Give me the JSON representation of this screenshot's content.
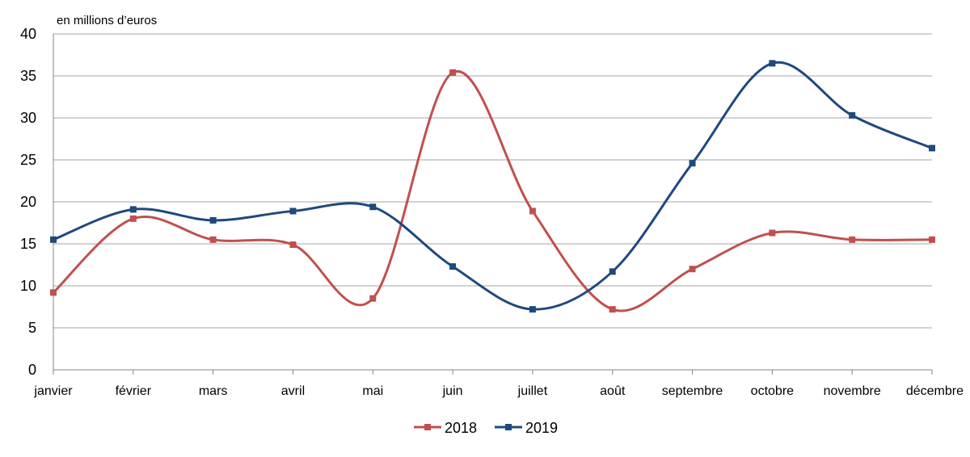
{
  "chart_data": {
    "type": "line",
    "y_unit_label": "en millions d’euros",
    "categories": [
      "janvier",
      "février",
      "mars",
      "avril",
      "mai",
      "juin",
      "juillet",
      "août",
      "septembre",
      "octobre",
      "novembre",
      "décembre"
    ],
    "ylim": [
      0,
      40
    ],
    "yticks": [
      0,
      5,
      10,
      15,
      20,
      25,
      30,
      35,
      40
    ],
    "grid": true,
    "legend_position": "bottom-center",
    "smooth": true,
    "series": [
      {
        "name": "2018",
        "color": "#C0504D",
        "values": [
          9.2,
          18.0,
          15.5,
          14.9,
          8.5,
          35.4,
          18.9,
          7.2,
          12.0,
          16.3,
          15.5,
          15.5
        ]
      },
      {
        "name": "2019",
        "color": "#1F497D",
        "values": [
          15.5,
          19.1,
          17.8,
          18.9,
          19.4,
          12.3,
          7.2,
          11.7,
          24.6,
          36.5,
          30.3,
          26.4
        ]
      }
    ]
  }
}
